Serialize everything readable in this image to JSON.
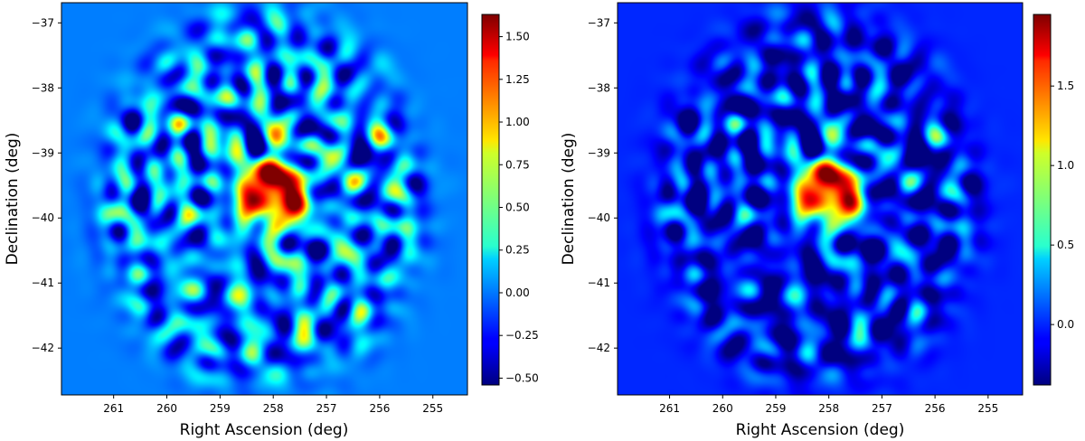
{
  "chart_data": [
    {
      "type": "heatmap",
      "title": "",
      "xlabel": "Right Ascension (deg)",
      "ylabel": "Declination (deg)",
      "xlim": [
        261.98,
        254.35
      ],
      "ylim": [
        -42.72,
        -36.69
      ],
      "x_ticks": [
        261,
        260,
        259,
        258,
        257,
        256,
        255
      ],
      "x_tick_labels": [
        "261",
        "260",
        "259",
        "258",
        "257",
        "256",
        "255"
      ],
      "y_ticks": [
        -37,
        -38,
        -39,
        -40,
        -41,
        -42
      ],
      "y_tick_labels": [
        "−37",
        "−38",
        "−39",
        "−40",
        "−41",
        "−42"
      ],
      "colormap": "jet",
      "colorbar": {
        "range": [
          -0.54,
          1.63
        ],
        "ticks": [
          -0.5,
          -0.25,
          0.0,
          0.25,
          0.5,
          0.75,
          1.0,
          1.25,
          1.5
        ],
        "tick_labels": [
          "−0.50",
          "−0.25",
          "0.00",
          "0.25",
          "0.50",
          "0.75",
          "1.00",
          "1.25",
          "1.50"
        ]
      },
      "background_value": 0.0,
      "region_center": [
        258.2,
        -39.7
      ],
      "hotspot_center": [
        258.0,
        -39.6
      ],
      "hotspot_peak": 1.6,
      "field_level": 0.0,
      "field_amplitude": 0.32,
      "seed": 7
    },
    {
      "type": "heatmap",
      "title": "",
      "xlabel": "Right Ascension (deg)",
      "ylabel": "Declination (deg)",
      "xlim": [
        261.98,
        254.35
      ],
      "ylim": [
        -42.72,
        -36.69
      ],
      "x_ticks": [
        261,
        260,
        259,
        258,
        257,
        256,
        255
      ],
      "x_tick_labels": [
        "261",
        "260",
        "259",
        "258",
        "257",
        "256",
        "255"
      ],
      "y_ticks": [
        -37,
        -38,
        -39,
        -40,
        -41,
        -42
      ],
      "y_tick_labels": [
        "−37",
        "−38",
        "−39",
        "−40",
        "−41",
        "−42"
      ],
      "colormap": "jet",
      "colorbar": {
        "range": [
          -0.38,
          1.95
        ],
        "ticks": [
          0.0,
          0.5,
          1.0,
          1.5
        ],
        "tick_labels": [
          "0.0",
          "0.5",
          "1.0",
          "1.5"
        ]
      },
      "background_value": 0.0,
      "region_center": [
        258.2,
        -39.7
      ],
      "hotspot_center": [
        258.0,
        -39.6
      ],
      "hotspot_peak": 1.9,
      "field_level": -0.12,
      "field_amplitude": 0.3,
      "seed": 7
    }
  ]
}
